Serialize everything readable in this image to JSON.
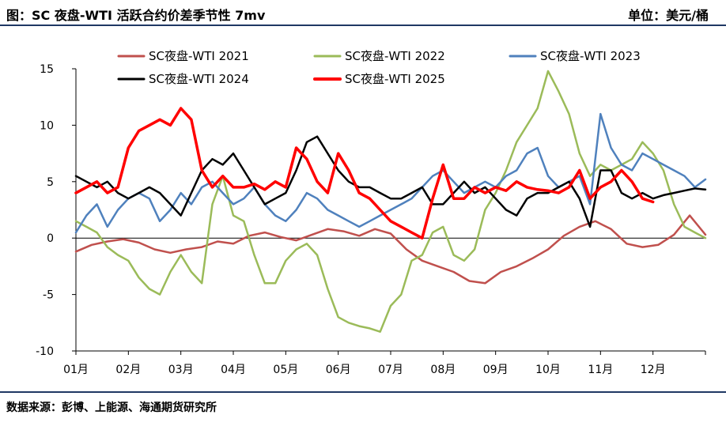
{
  "header": {
    "title": "图：SC 夜盘-WTI 活跃合约价差季节性 7mv",
    "unit": "单位：美元/桶"
  },
  "footer": {
    "source": "数据来源：彭博、上能源、海通期货研究所"
  },
  "chart_data": {
    "type": "line",
    "title": "SC 夜盘-WTI 活跃合约价差季节性 7mv",
    "ylabel": "美元/桶",
    "ylim": [
      -10,
      15
    ],
    "yticks": [
      -10,
      -5,
      0,
      5,
      10,
      15
    ],
    "x_domain": [
      0,
      12
    ],
    "categories": [
      "01月",
      "02月",
      "03月",
      "04月",
      "05月",
      "06月",
      "07月",
      "08月",
      "09月",
      "10月",
      "11月",
      "12月"
    ],
    "series": [
      {
        "name": "SC夜盘-WTI 2021",
        "color": "#c0504d",
        "width": 2.5,
        "x": [
          0.0,
          0.3,
          0.6,
          0.9,
          1.2,
          1.5,
          1.8,
          2.1,
          2.4,
          2.7,
          3.0,
          3.3,
          3.6,
          3.9,
          4.2,
          4.5,
          4.8,
          5.1,
          5.4,
          5.7,
          6.0,
          6.3,
          6.6,
          6.9,
          7.2,
          7.5,
          7.8,
          8.1,
          8.4,
          8.7,
          9.0,
          9.3,
          9.6,
          9.9,
          10.2,
          10.5,
          10.8,
          11.1,
          11.4,
          11.7,
          12.0
        ],
        "y": [
          -1.2,
          -0.6,
          -0.3,
          -0.1,
          -0.4,
          -1.0,
          -1.3,
          -1.0,
          -0.8,
          -0.3,
          -0.5,
          0.2,
          0.5,
          0.1,
          -0.2,
          0.3,
          0.8,
          0.6,
          0.2,
          0.8,
          0.4,
          -1.0,
          -2.0,
          -2.5,
          -3.0,
          -3.8,
          -4.0,
          -3.0,
          -2.5,
          -1.8,
          -1.0,
          0.2,
          1.0,
          1.5,
          0.8,
          -0.5,
          -0.8,
          -0.6,
          0.3,
          2.0,
          0.3
        ]
      },
      {
        "name": "SC夜盘-WTI 2022",
        "color": "#9bbb59",
        "width": 2.5,
        "x": [
          0.0,
          0.2,
          0.4,
          0.6,
          0.8,
          1.0,
          1.2,
          1.4,
          1.6,
          1.8,
          2.0,
          2.2,
          2.4,
          2.6,
          2.8,
          3.0,
          3.2,
          3.4,
          3.6,
          3.8,
          4.0,
          4.2,
          4.4,
          4.6,
          4.8,
          5.0,
          5.2,
          5.4,
          5.6,
          5.8,
          6.0,
          6.2,
          6.4,
          6.6,
          6.8,
          7.0,
          7.2,
          7.4,
          7.6,
          7.8,
          8.0,
          8.2,
          8.4,
          8.6,
          8.8,
          9.0,
          9.2,
          9.4,
          9.6,
          9.8,
          10.0,
          10.2,
          10.4,
          10.6,
          10.8,
          11.0,
          11.2,
          11.4,
          11.6,
          11.8,
          12.0
        ],
        "y": [
          1.5,
          1.0,
          0.5,
          -0.8,
          -1.5,
          -2.0,
          -3.5,
          -4.5,
          -5.0,
          -3.0,
          -1.5,
          -3.0,
          -4.0,
          3.0,
          5.5,
          2.0,
          1.5,
          -1.5,
          -4.0,
          -4.0,
          -2.0,
          -1.0,
          -0.5,
          -1.5,
          -4.5,
          -7.0,
          -7.5,
          -7.8,
          -8.0,
          -8.3,
          -6.0,
          -5.0,
          -2.0,
          -1.5,
          0.5,
          1.0,
          -1.5,
          -2.0,
          -1.0,
          2.5,
          4.0,
          6.0,
          8.5,
          10.0,
          11.5,
          14.8,
          13.0,
          11.0,
          7.5,
          5.5,
          6.5,
          6.0,
          6.5,
          7.0,
          8.5,
          7.5,
          6.0,
          3.0,
          1.0,
          0.5,
          0.0
        ]
      },
      {
        "name": "SC夜盘-WTI 2023",
        "color": "#4f81bd",
        "width": 2.5,
        "x": [
          0.0,
          0.2,
          0.4,
          0.6,
          0.8,
          1.0,
          1.2,
          1.4,
          1.6,
          1.8,
          2.0,
          2.2,
          2.4,
          2.6,
          2.8,
          3.0,
          3.2,
          3.4,
          3.6,
          3.8,
          4.0,
          4.2,
          4.4,
          4.6,
          4.8,
          5.0,
          5.2,
          5.4,
          5.6,
          5.8,
          6.0,
          6.2,
          6.4,
          6.6,
          6.8,
          7.0,
          7.2,
          7.4,
          7.6,
          7.8,
          8.0,
          8.2,
          8.4,
          8.6,
          8.8,
          9.0,
          9.2,
          9.4,
          9.6,
          9.8,
          10.0,
          10.2,
          10.4,
          10.6,
          10.8,
          11.0,
          11.2,
          11.4,
          11.6,
          11.8,
          12.0
        ],
        "y": [
          0.5,
          2.0,
          3.0,
          1.0,
          2.5,
          3.5,
          4.0,
          3.5,
          1.5,
          2.5,
          4.0,
          3.0,
          4.5,
          5.0,
          4.0,
          3.0,
          3.5,
          4.5,
          3.0,
          2.0,
          1.5,
          2.5,
          4.0,
          3.5,
          2.5,
          2.0,
          1.5,
          1.0,
          1.5,
          2.0,
          2.5,
          3.0,
          3.5,
          4.5,
          5.5,
          6.0,
          5.0,
          4.0,
          4.5,
          5.0,
          4.5,
          5.5,
          6.0,
          7.5,
          8.0,
          5.5,
          4.5,
          5.0,
          5.5,
          3.0,
          11.0,
          8.0,
          6.5,
          6.0,
          7.5,
          7.0,
          6.5,
          6.0,
          5.5,
          4.5,
          5.2
        ]
      },
      {
        "name": "SC夜盘-WTI 2024",
        "color": "#000000",
        "width": 2.5,
        "x": [
          0.0,
          0.2,
          0.4,
          0.6,
          0.8,
          1.0,
          1.2,
          1.4,
          1.6,
          1.8,
          2.0,
          2.2,
          2.4,
          2.6,
          2.8,
          3.0,
          3.2,
          3.4,
          3.6,
          3.8,
          4.0,
          4.2,
          4.4,
          4.6,
          4.8,
          5.0,
          5.2,
          5.4,
          5.6,
          5.8,
          6.0,
          6.2,
          6.4,
          6.6,
          6.8,
          7.0,
          7.2,
          7.4,
          7.6,
          7.8,
          8.0,
          8.2,
          8.4,
          8.6,
          8.8,
          9.0,
          9.2,
          9.4,
          9.6,
          9.8,
          10.0,
          10.2,
          10.4,
          10.6,
          10.8,
          11.0,
          11.2,
          11.4,
          11.6,
          11.8,
          12.0
        ],
        "y": [
          5.5,
          5.0,
          4.5,
          5.0,
          4.0,
          3.5,
          4.0,
          4.5,
          4.0,
          3.0,
          2.0,
          4.0,
          6.0,
          7.0,
          6.5,
          7.5,
          6.0,
          4.5,
          3.0,
          3.5,
          4.0,
          6.0,
          8.5,
          9.0,
          7.5,
          6.0,
          5.0,
          4.5,
          4.5,
          4.0,
          3.5,
          3.5,
          4.0,
          4.5,
          3.0,
          3.0,
          4.0,
          5.0,
          4.0,
          4.5,
          3.5,
          2.5,
          2.0,
          3.5,
          4.0,
          4.0,
          4.5,
          5.0,
          3.5,
          1.0,
          6.0,
          6.0,
          4.0,
          3.5,
          4.0,
          3.5,
          3.8,
          4.0,
          4.2,
          4.4,
          4.3
        ]
      },
      {
        "name": "SC夜盘-WTI 2025",
        "color": "#ff0000",
        "width": 3.5,
        "x": [
          0.0,
          0.2,
          0.4,
          0.6,
          0.8,
          1.0,
          1.2,
          1.4,
          1.6,
          1.8,
          2.0,
          2.2,
          2.4,
          2.6,
          2.8,
          3.0,
          3.2,
          3.4,
          3.6,
          3.8,
          4.0,
          4.2,
          4.4,
          4.6,
          4.8,
          5.0,
          5.2,
          5.4,
          5.6,
          5.8,
          6.0,
          6.2,
          6.4,
          6.6,
          6.8,
          7.0,
          7.2,
          7.4,
          7.6,
          7.8,
          8.0,
          8.2,
          8.4,
          8.6,
          8.8,
          9.0,
          9.2,
          9.4,
          9.6,
          9.8,
          10.0,
          10.2,
          10.4,
          10.6,
          10.8,
          11.0
        ],
        "y": [
          4.0,
          4.5,
          5.0,
          4.0,
          4.5,
          8.0,
          9.5,
          10.0,
          10.5,
          10.0,
          11.5,
          10.5,
          6.0,
          4.5,
          5.5,
          4.5,
          4.5,
          4.8,
          4.3,
          5.0,
          4.5,
          8.0,
          7.0,
          5.0,
          4.0,
          7.5,
          6.0,
          4.0,
          3.5,
          2.5,
          1.5,
          1.0,
          0.5,
          0.0,
          3.5,
          6.5,
          3.5,
          3.5,
          4.5,
          4.0,
          4.5,
          4.2,
          5.0,
          4.5,
          4.3,
          4.2,
          4.0,
          4.5,
          6.0,
          3.5,
          4.5,
          5.0,
          6.0,
          5.0,
          3.5,
          3.2
        ]
      }
    ]
  }
}
